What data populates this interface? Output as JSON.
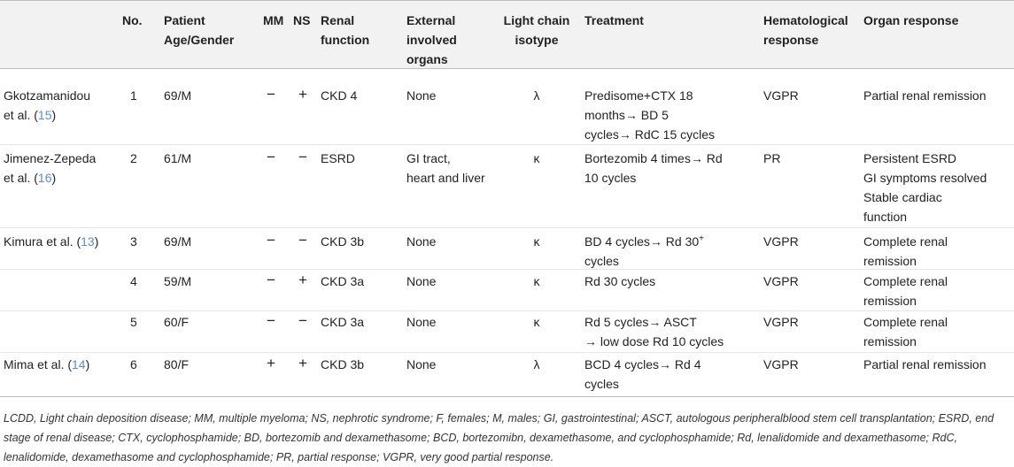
{
  "headers": {
    "author": "",
    "no": "No.",
    "age": "Patient\nAge/Gender",
    "mm": "MM",
    "ns": "NS",
    "renal": "Renal\nfunction",
    "organs": "External\ninvolved\norgans",
    "light": "Light chain\nisotype",
    "treatment": "Treatment",
    "hema": "Hematological\nresponse",
    "organresp": "Organ response"
  },
  "rows": [
    {
      "author": "Gkotzamanidou\net al. (",
      "ref": "15",
      "author_end": ")",
      "no": "1",
      "age": "69/M",
      "mm": "−",
      "ns": "+",
      "renal": "CKD 4",
      "organs": "None",
      "light": "λ",
      "treatment": "Predisome+CTX 18\nmonths→ BD 5\ncycles→ RdC 15 cycles",
      "hema": "VGPR",
      "organresp": "Partial renal remission"
    },
    {
      "author": "Jimenez-Zepeda\net al. (",
      "ref": "16",
      "author_end": ")",
      "no": "2",
      "age": "61/M",
      "mm": "−",
      "ns": "−",
      "renal": "ESRD",
      "organs": "GI tract,\nheart and liver",
      "light": "κ",
      "treatment": "Bortezomib 4 times→ Rd\n10 cycles",
      "hema": "PR",
      "organresp": "Persistent ESRD\nGI symptoms resolved\nStable cardiac\nfunction"
    },
    {
      "author": "Kimura et al. (",
      "ref": "13",
      "author_end": ")",
      "no": "3",
      "age": "69/M",
      "mm": "−",
      "ns": "−",
      "renal": "CKD 3b",
      "organs": "None",
      "light": "κ",
      "treatment_a": "BD 4 cycles→ Rd 30",
      "treatment_sup": "+",
      "treatment_b": "cycles",
      "hema": "VGPR",
      "organresp": "Complete renal\nremission"
    },
    {
      "author": "",
      "ref": "",
      "author_end": "",
      "no": "4",
      "age": "59/M",
      "mm": "−",
      "ns": "+",
      "renal": "CKD 3a",
      "organs": "None",
      "light": "κ",
      "treatment": "Rd 30 cycles",
      "hema": "VGPR",
      "organresp": "Complete renal\nremission"
    },
    {
      "author": "",
      "ref": "",
      "author_end": "",
      "no": "5",
      "age": "60/F",
      "mm": "−",
      "ns": "−",
      "renal": "CKD 3a",
      "organs": "None",
      "light": "κ",
      "treatment": "Rd 5 cycles→ ASCT\n→ low dose Rd 10 cycles",
      "hema": "VGPR",
      "organresp": "Complete renal\nremission"
    },
    {
      "author": "Mima et al. (",
      "ref": "14",
      "author_end": ")",
      "no": "6",
      "age": "80/F",
      "mm": "+",
      "ns": "+",
      "renal": "CKD 3b",
      "organs": "None",
      "light": "λ",
      "treatment": "BCD 4 cycles→ Rd 4\ncycles",
      "hema": "VGPR",
      "organresp": "Partial renal remission"
    }
  ],
  "footnote": "LCDD, Light chain deposition disease; MM, multiple myeloma; NS, nephrotic syndrome; F, females; M, males; GI, gastrointestinal; ASCT, autologous peripheralblood stem cell transplantation; ESRD, end stage of renal disease; CTX, cyclophosphamide; BD, bortezomib and dexamethasome; BCD, bortezomibn, dexamethasome, and cyclophosphamide; Rd, lenalidomide and dexamethasome; RdC, lenalidomide, dexamethasome and cyclophosphamide; PR, partial response; VGPR, very good partial response."
}
